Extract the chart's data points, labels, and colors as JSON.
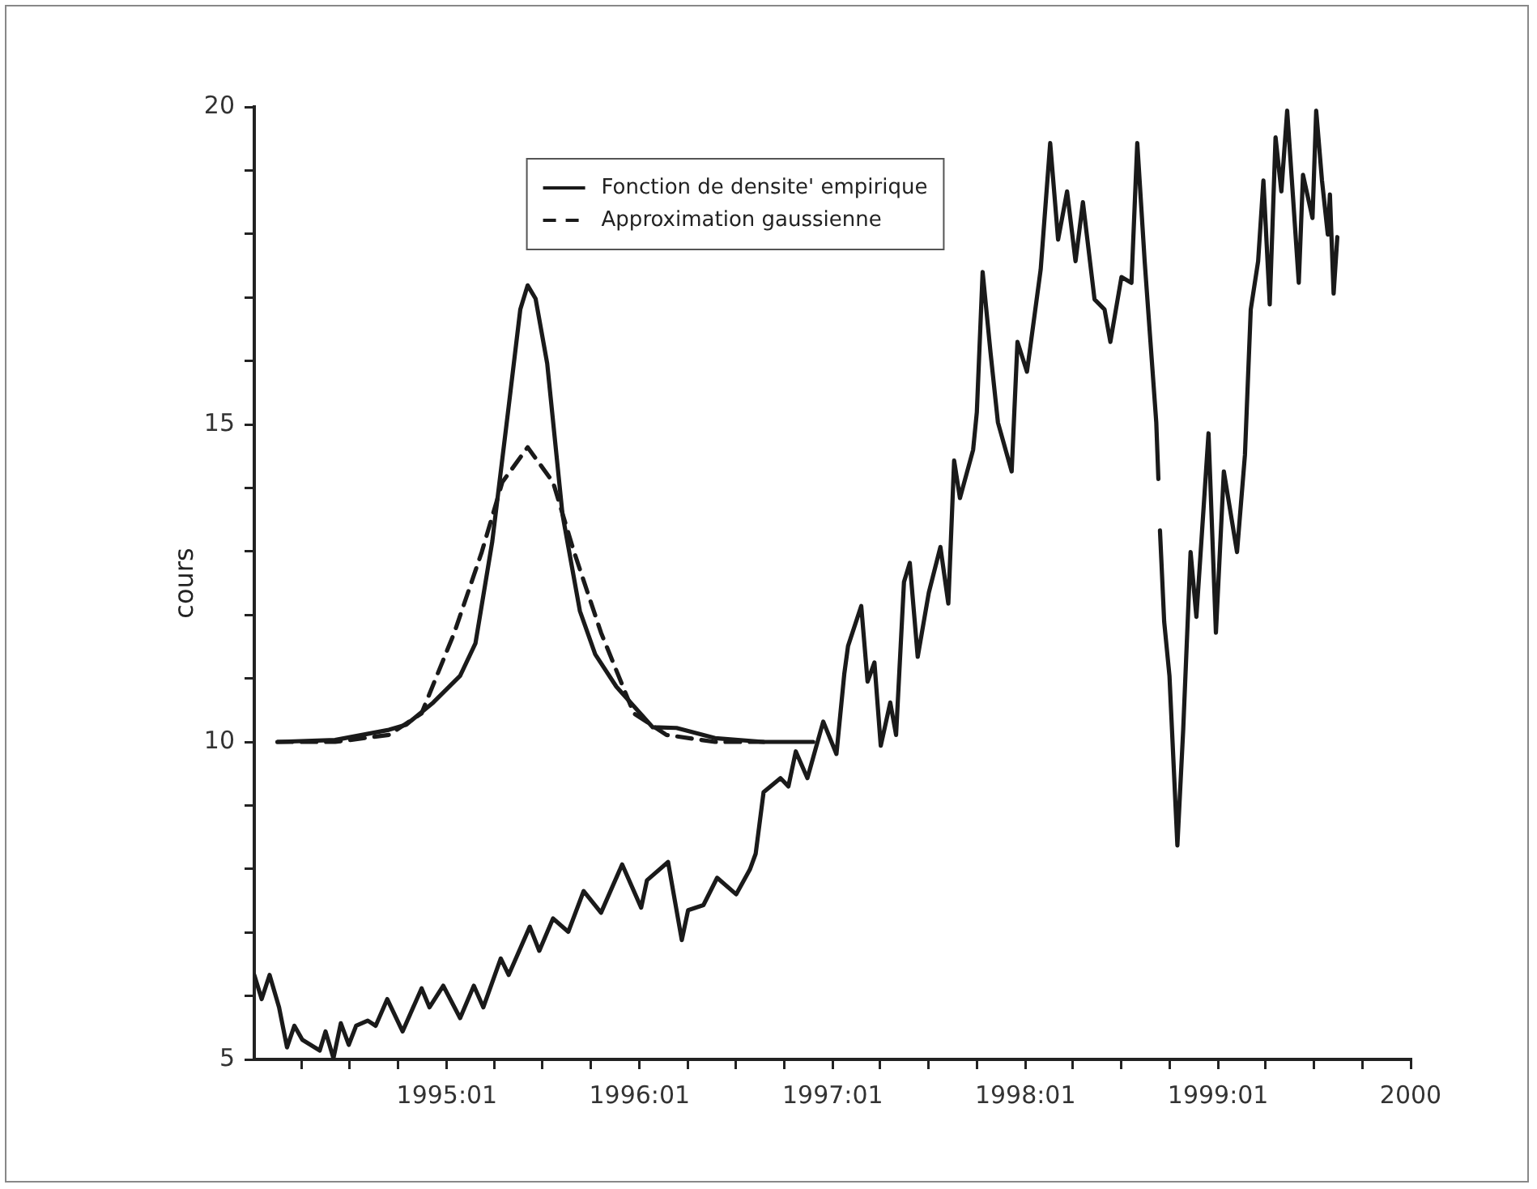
{
  "chart_data": {
    "type": "line",
    "ylabel": "cours",
    "xlim": [
      "1994-01-01",
      "2000-01-01"
    ],
    "ylim": [
      5,
      20
    ],
    "xticks": [
      {
        "value": "1994-04-01",
        "label": null
      },
      {
        "value": "1994-07-01",
        "label": null
      },
      {
        "value": "1994-10-01",
        "label": null
      },
      {
        "value": "1995-01-01",
        "label": "1995:01"
      },
      {
        "value": "1995-04-01",
        "label": null
      },
      {
        "value": "1995-07-01",
        "label": null
      },
      {
        "value": "1995-10-01",
        "label": null
      },
      {
        "value": "1996-01-01",
        "label": "1996:01"
      },
      {
        "value": "1996-04-01",
        "label": null
      },
      {
        "value": "1996-07-01",
        "label": null
      },
      {
        "value": "1996-10-01",
        "label": null
      },
      {
        "value": "1997-01-01",
        "label": "1997:01"
      },
      {
        "value": "1997-04-01",
        "label": null
      },
      {
        "value": "1997-07-01",
        "label": null
      },
      {
        "value": "1997-10-01",
        "label": null
      },
      {
        "value": "1998-01-01",
        "label": "1998:01"
      },
      {
        "value": "1998-04-01",
        "label": null
      },
      {
        "value": "1998-07-01",
        "label": null
      },
      {
        "value": "1998-10-01",
        "label": null
      },
      {
        "value": "1999-01-01",
        "label": "1999:01"
      },
      {
        "value": "1999-04-01",
        "label": null
      },
      {
        "value": "1999-07-01",
        "label": null
      },
      {
        "value": "1999-10-01",
        "label": null
      },
      {
        "value": "2000-01-01",
        "label": "2000"
      }
    ],
    "yticks": [
      5,
      {
        "value": 6,
        "label": null
      },
      {
        "value": 7,
        "label": null
      },
      {
        "value": 8,
        "label": null
      },
      {
        "value": 9,
        "label": null
      },
      10,
      {
        "value": 11,
        "label": null
      },
      {
        "value": 12,
        "label": null
      },
      {
        "value": 13,
        "label": null
      },
      {
        "value": 14,
        "label": null
      },
      15,
      {
        "value": 16,
        "label": null
      },
      {
        "value": 17,
        "label": null
      },
      {
        "value": 18,
        "label": null
      },
      {
        "value": 19,
        "label": null
      },
      20
    ],
    "grid": false,
    "legend": "top",
    "marker": "none",
    "series": [
      {
        "color": "#1a1a1a",
        "line_style": "solid",
        "x": [
          "1994-01-01",
          "1994-01-15",
          "1994-01-30",
          "1994-02-17",
          "1994-03-04",
          "1994-03-18",
          "1994-04-02",
          "1994-05-05",
          "1994-05-16",
          "1994-05-31",
          "1994-06-14",
          "1994-06-29",
          "1994-07-13",
          "1994-08-04",
          "1994-08-19",
          "1994-09-10",
          "1994-10-09",
          "1994-11-14",
          "1994-11-29",
          "1994-12-25",
          "1995-01-26",
          "1995-02-21",
          "1995-03-11",
          "1995-04-13",
          "1995-04-28",
          "1995-06-07",
          "1995-06-25",
          "1995-07-21",
          "1995-08-19",
          "1995-09-17",
          "1995-10-20",
          "1995-11-29",
          "1996-01-04",
          "1996-01-15",
          "1996-02-24",
          "1996-03-21",
          "1996-04-02",
          "1996-05-01",
          "1996-05-27",
          "1996-07-02",
          "1996-07-28",
          "1996-08-08",
          "1996-08-23",
          "1996-09-24",
          "1996-10-09",
          "1996-10-23",
          "1996-11-14",
          "1996-12-14",
          "1997-01-08",
          "1997-01-23",
          "1997-01-30",
          "1997-02-24",
          "1997-03-08",
          "1997-03-21",
          "1997-04-02",
          "1997-04-20",
          "1997-05-01",
          "1997-05-16",
          "1997-05-27",
          "1997-06-11",
          "1997-07-02",
          "1997-07-24",
          "1997-08-08",
          "1997-08-19",
          "1997-08-30",
          "1997-09-24",
          "1997-10-01",
          "1997-10-12",
          "1997-10-27",
          "1997-11-10",
          "1997-12-06",
          "1997-12-17",
          "1998-01-04",
          "1998-01-30",
          "1998-02-17",
          "1998-03-04",
          "1998-03-21",
          "1998-04-06",
          "1998-04-20",
          "1998-05-12",
          "1998-05-31",
          "1998-06-11",
          "1998-07-02",
          "1998-07-21",
          "1998-08-01",
          "1998-08-15",
          "1998-08-26",
          "1998-09-06",
          "1998-09-10",
          "1998-09-12",
          "1998-09-13",
          "1998-09-21",
          "1998-10-01",
          "1998-10-16",
          "1998-10-27",
          "1998-11-10",
          "1998-11-21",
          "1998-12-14",
          "1998-12-28",
          "1999-01-12",
          "1999-02-06",
          "1999-02-21",
          "1999-03-04",
          "1999-03-18",
          "1999-03-28",
          "1999-04-09",
          "1999-04-20",
          "1999-05-01",
          "1999-05-12",
          "1999-05-23",
          "1999-06-03",
          "1999-06-11",
          "1999-06-29",
          "1999-07-06",
          "1999-07-17",
          "1999-07-28",
          "1999-08-01",
          "1999-08-08",
          "1999-08-15"
        ],
        "values": [
          6.33,
          5.95,
          6.33,
          5.82,
          5.19,
          5.53,
          5.31,
          5.14,
          5.44,
          5.02,
          5.57,
          5.23,
          5.53,
          5.61,
          5.53,
          5.95,
          5.44,
          6.12,
          5.82,
          6.16,
          5.65,
          6.16,
          5.82,
          6.59,
          6.33,
          7.09,
          6.71,
          7.22,
          7.01,
          7.65,
          7.31,
          8.07,
          7.39,
          7.82,
          8.11,
          6.88,
          7.35,
          7.43,
          7.86,
          7.6,
          7.99,
          8.24,
          9.21,
          9.43,
          9.3,
          9.85,
          9.43,
          10.32,
          9.81,
          11.08,
          11.51,
          12.14,
          10.95,
          11.25,
          9.94,
          10.62,
          10.11,
          12.52,
          12.82,
          11.34,
          12.35,
          13.07,
          12.18,
          14.43,
          13.84,
          14.6,
          15.19,
          17.4,
          16.13,
          15.03,
          14.26,
          16.3,
          15.83,
          17.44,
          19.43,
          17.91,
          18.67,
          17.57,
          18.5,
          16.97,
          16.81,
          16.3,
          17.32,
          17.23,
          19.43,
          17.57,
          16.3,
          15.03,
          14.14,
          null,
          13.33,
          11.89,
          11.04,
          8.37,
          10.19,
          12.99,
          11.97,
          14.86,
          11.72,
          14.26,
          12.99,
          14.52,
          16.81,
          17.57,
          18.84,
          16.89,
          19.52,
          18.67,
          19.94,
          18.59,
          17.23,
          18.93,
          18.25,
          19.94,
          18.84,
          17.99,
          18.62,
          17.06,
          17.95
        ]
      },
      {
        "name": "Fonction de densite' empirique",
        "color": "#1a1a1a",
        "line_style": "solid",
        "x": [
          "1994-02-14",
          "1994-06-03",
          "1994-09-13",
          "1994-10-16",
          "1994-12-06",
          "1995-01-26",
          "1995-02-24",
          "1995-03-28",
          "1995-04-28",
          "1995-05-20",
          "1995-06-03",
          "1995-06-18",
          "1995-07-10",
          "1995-08-08",
          "1995-09-10",
          "1995-10-09",
          "1995-11-18",
          "1996-01-26",
          "1996-03-11",
          "1996-05-23",
          "1996-08-23",
          "1996-11-25"
        ],
        "values": [
          10.0,
          10.03,
          10.19,
          10.27,
          10.62,
          11.04,
          11.55,
          13.16,
          15.28,
          16.81,
          17.19,
          16.98,
          15.96,
          13.58,
          12.06,
          11.38,
          10.87,
          10.23,
          10.22,
          10.06,
          10.0,
          10.0
        ]
      },
      {
        "name": "Approximation gaussienne",
        "color": "#1a1a1a",
        "line_style": "dashed",
        "x": [
          "1994-02-14",
          "1994-06-03",
          "1994-09-13",
          "1994-11-14",
          "1995-01-15",
          "1995-03-08",
          "1995-04-16",
          "1995-06-03",
          "1995-07-21",
          "1995-08-30",
          "1995-10-20",
          "1995-12-21",
          "1996-02-21",
          "1996-05-23",
          "1996-08-23"
        ],
        "values": [
          10.0,
          10.0,
          10.11,
          10.45,
          11.72,
          12.99,
          14.09,
          14.64,
          14.09,
          12.99,
          11.72,
          10.45,
          10.11,
          10.0,
          10.0
        ]
      }
    ]
  }
}
